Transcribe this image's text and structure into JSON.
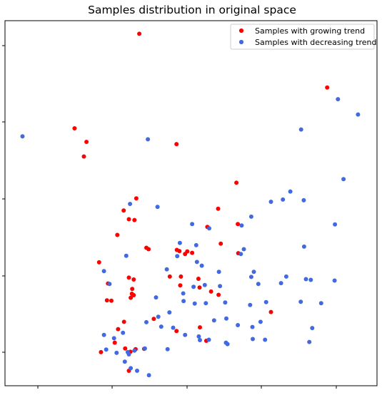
{
  "chart_data": {
    "type": "scatter",
    "title": "Samples distribution in original space",
    "xlabel": "",
    "ylabel": "",
    "xlim": [
      0,
      100
    ],
    "ylim": [
      0,
      100
    ],
    "grid": false,
    "legend_position": "top-right",
    "series": [
      {
        "name": "Samples with growing trend",
        "color": "#ff0000",
        "marker": "circle",
        "points": [
          [
            36.1,
            96.4
          ],
          [
            86.6,
            81.7
          ],
          [
            18.7,
            70.5
          ],
          [
            21.9,
            66.8
          ],
          [
            21.2,
            62.8
          ],
          [
            46.1,
            66.2
          ],
          [
            62.2,
            55.6
          ],
          [
            35.3,
            51.3
          ],
          [
            57.3,
            48.5
          ],
          [
            62.6,
            44.3
          ],
          [
            31.9,
            48.0
          ],
          [
            33.3,
            45.6
          ],
          [
            34.8,
            45.4
          ],
          [
            30.2,
            41.3
          ],
          [
            38.0,
            37.8
          ],
          [
            38.6,
            37.4
          ],
          [
            46.2,
            37.2
          ],
          [
            49.0,
            36.8
          ],
          [
            50.3,
            36.4
          ],
          [
            46.9,
            36.9
          ],
          [
            48.4,
            36.1
          ],
          [
            54.4,
            43.5
          ],
          [
            62.7,
            36.3
          ],
          [
            44.3,
            29.9
          ],
          [
            47.3,
            29.9
          ],
          [
            52.0,
            29.3
          ],
          [
            25.3,
            33.8
          ],
          [
            27.7,
            28.0
          ],
          [
            33.3,
            29.6
          ],
          [
            34.6,
            29.1
          ],
          [
            34.2,
            26.5
          ],
          [
            47.1,
            27.5
          ],
          [
            52.3,
            26.9
          ],
          [
            27.4,
            23.4
          ],
          [
            28.6,
            23.3
          ],
          [
            34.1,
            25.2
          ],
          [
            33.8,
            24.1
          ],
          [
            40.0,
            18.3
          ],
          [
            34.6,
            24.8
          ],
          [
            52.4,
            16.0
          ],
          [
            71.5,
            20.2
          ],
          [
            32.0,
            17.5
          ],
          [
            30.4,
            15.5
          ],
          [
            46.1,
            15.0
          ],
          [
            54.1,
            12.3
          ],
          [
            35.1,
            10.0
          ],
          [
            37.4,
            10.1
          ],
          [
            33.7,
            9.3
          ],
          [
            25.8,
            9.2
          ],
          [
            33.3,
            4.1
          ],
          [
            32.3,
            10.2
          ],
          [
            29.5,
            11.8
          ],
          [
            55.4,
            25.8
          ],
          [
            57.4,
            24.9
          ],
          [
            58.0,
            38.9
          ]
        ]
      },
      {
        "name": "Samples with decreasing trend",
        "color": "#4169e1",
        "marker": "circle",
        "points": [
          [
            4.7,
            68.3
          ],
          [
            38.4,
            67.5
          ],
          [
            79.6,
            70.2
          ],
          [
            89.5,
            78.5
          ],
          [
            94.9,
            74.3
          ],
          [
            41.0,
            49.0
          ],
          [
            33.6,
            49.8
          ],
          [
            91.0,
            56.6
          ],
          [
            88.7,
            44.2
          ],
          [
            76.7,
            53.2
          ],
          [
            74.7,
            51.0
          ],
          [
            71.5,
            50.4
          ],
          [
            80.3,
            50.8
          ],
          [
            66.2,
            46.3
          ],
          [
            63.6,
            43.9
          ],
          [
            50.3,
            44.3
          ],
          [
            54.9,
            43.1
          ],
          [
            47.0,
            39.1
          ],
          [
            51.4,
            38.5
          ],
          [
            80.4,
            38.1
          ],
          [
            64.2,
            37.4
          ],
          [
            63.4,
            36.1
          ],
          [
            32.6,
            35.6
          ],
          [
            46.3,
            35.5
          ],
          [
            51.6,
            33.9
          ],
          [
            26.6,
            31.4
          ],
          [
            43.5,
            31.9
          ],
          [
            52.9,
            32.9
          ],
          [
            57.5,
            31.2
          ],
          [
            66.9,
            31.2
          ],
          [
            66.2,
            29.8
          ],
          [
            75.6,
            29.9
          ],
          [
            74.2,
            28.1
          ],
          [
            80.9,
            29.2
          ],
          [
            82.2,
            29.0
          ],
          [
            88.6,
            28.8
          ],
          [
            28.1,
            27.9
          ],
          [
            50.7,
            27.1
          ],
          [
            53.7,
            27.6
          ],
          [
            57.8,
            27.3
          ],
          [
            68.1,
            27.9
          ],
          [
            47.9,
            25.3
          ],
          [
            40.6,
            24.2
          ],
          [
            59.2,
            22.8
          ],
          [
            65.9,
            22.1
          ],
          [
            70.2,
            22.9
          ],
          [
            79.5,
            23.0
          ],
          [
            85.0,
            22.6
          ],
          [
            48.0,
            23.2
          ],
          [
            51.0,
            22.5
          ],
          [
            54.0,
            22.6
          ],
          [
            44.2,
            20.1
          ],
          [
            41.2,
            18.9
          ],
          [
            38.0,
            17.4
          ],
          [
            56.2,
            17.9
          ],
          [
            59.5,
            18.4
          ],
          [
            68.7,
            17.5
          ],
          [
            62.6,
            16.6
          ],
          [
            66.5,
            16.1
          ],
          [
            82.6,
            15.8
          ],
          [
            45.2,
            15.9
          ],
          [
            42.0,
            16.2
          ],
          [
            31.7,
            14.5
          ],
          [
            26.6,
            13.9
          ],
          [
            29.3,
            13.0
          ],
          [
            54.8,
            12.6
          ],
          [
            66.6,
            12.8
          ],
          [
            69.9,
            12.6
          ],
          [
            81.8,
            12.0
          ],
          [
            48.4,
            13.9
          ],
          [
            52.1,
            13.5
          ],
          [
            52.4,
            12.5
          ],
          [
            59.4,
            11.8
          ],
          [
            59.8,
            11.4
          ],
          [
            37.6,
            10.2
          ],
          [
            43.7,
            10.0
          ],
          [
            34.8,
            9.6
          ],
          [
            33.0,
            9.2
          ],
          [
            33.3,
            8.6
          ],
          [
            27.2,
            9.9
          ],
          [
            32.2,
            6.6
          ],
          [
            33.8,
            4.8
          ],
          [
            35.5,
            4.1
          ],
          [
            38.7,
            2.9
          ],
          [
            30.0,
            9.0
          ]
        ]
      }
    ]
  }
}
